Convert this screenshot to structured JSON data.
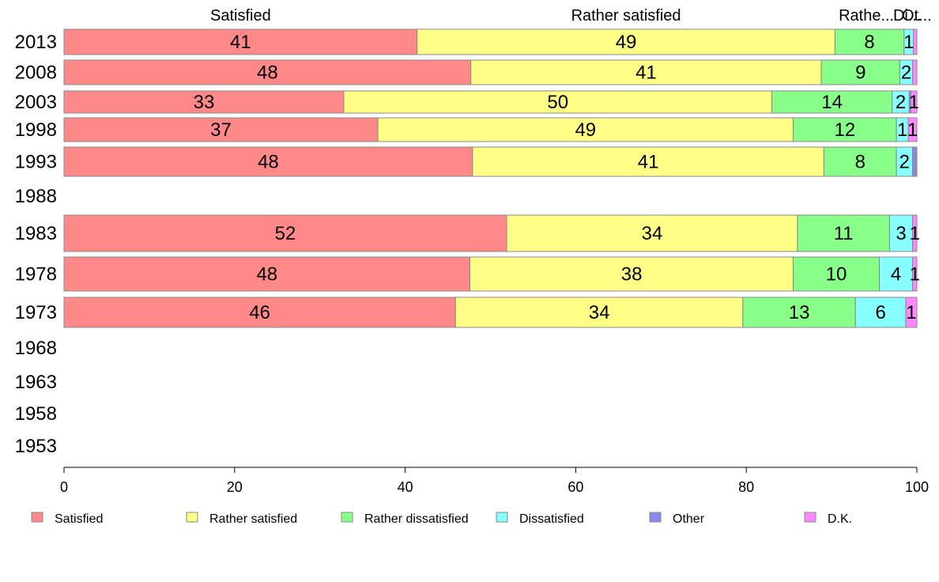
{
  "chart_data": {
    "type": "bar",
    "orientation": "horizontal",
    "stacked": true,
    "categories": [
      "2013",
      "2008",
      "2003",
      "1998",
      "1993",
      "1988",
      "1983",
      "1978",
      "1973",
      "1968",
      "1963",
      "1958",
      "1953"
    ],
    "series": [
      {
        "name": "Satisfied",
        "color": "#ff8888",
        "values": [
          41.4,
          47.7,
          32.8,
          36.8,
          47.9,
          null,
          51.9,
          47.6,
          45.9,
          null,
          null,
          null,
          null
        ]
      },
      {
        "name": "Rather satisfied",
        "color": "#ffff88",
        "values": [
          49.0,
          41.1,
          50.2,
          48.7,
          41.2,
          null,
          34.1,
          37.9,
          33.7,
          null,
          null,
          null,
          null
        ]
      },
      {
        "name": "Rather dissatisfied",
        "color": "#88ff88",
        "values": [
          8.1,
          9.2,
          14.1,
          12.1,
          8.5,
          null,
          10.8,
          10.1,
          13.2,
          null,
          null,
          null,
          null
        ]
      },
      {
        "name": "Dissatisfied",
        "color": "#88ffff",
        "values": [
          1.1,
          1.5,
          2.0,
          1.4,
          1.9,
          null,
          2.7,
          3.9,
          5.9,
          null,
          null,
          null,
          null
        ]
      },
      {
        "name": "Other",
        "color": "#8888ee",
        "values": [
          0,
          0,
          0.2,
          0,
          0.4,
          null,
          0,
          0,
          0,
          null,
          null,
          null,
          null
        ]
      },
      {
        "name": "D.K.",
        "color": "#ff88ff",
        "values": [
          0.4,
          0.5,
          0.7,
          1.0,
          0.1,
          null,
          0.5,
          0.5,
          1.3,
          null,
          null,
          null,
          null
        ]
      }
    ],
    "value_labels": [
      [
        "41",
        "49",
        "8",
        "1",
        "",
        ""
      ],
      [
        "48",
        "41",
        "9",
        "2",
        "",
        ""
      ],
      [
        "33",
        "50",
        "14",
        "2",
        "",
        "1"
      ],
      [
        "37",
        "49",
        "12",
        "1",
        "",
        "1"
      ],
      [
        "48",
        "41",
        "8",
        "2",
        "",
        ""
      ],
      [
        "",
        "",
        "",
        "",
        "",
        ""
      ],
      [
        "52",
        "34",
        "11",
        "3",
        "",
        "1"
      ],
      [
        "48",
        "38",
        "10",
        "4",
        "",
        "1"
      ],
      [
        "46",
        "34",
        "13",
        "6",
        "",
        "1"
      ],
      [
        "",
        "",
        "",
        "",
        "",
        ""
      ],
      [
        "",
        "",
        "",
        "",
        "",
        ""
      ],
      [
        "",
        "",
        "",
        "",
        "",
        ""
      ],
      [
        "",
        "",
        "",
        "",
        "",
        ""
      ]
    ],
    "top_labels": [
      "Satisfied",
      "Rather satisfied",
      "Rathe...",
      "Di...",
      "Ot..."
    ],
    "xlim": [
      0,
      100
    ],
    "xticks": [
      0,
      20,
      40,
      60,
      80,
      100
    ],
    "legend_position": "bottom",
    "grid": false
  }
}
